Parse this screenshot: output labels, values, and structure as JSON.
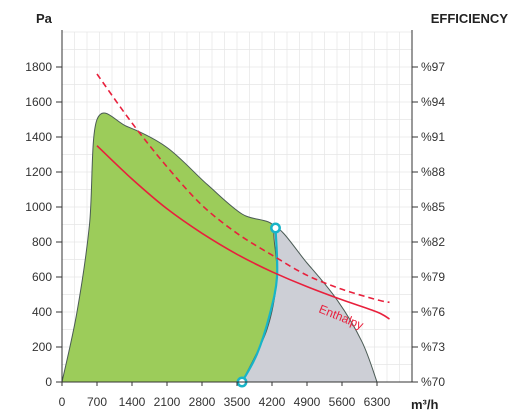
{
  "chart_data": {
    "type": "line",
    "left_axis_label": "Pa",
    "right_axis_label": "EFFICIENCY",
    "x_axis_label": "m³/h",
    "x_ticks": [
      0,
      700,
      1400,
      2100,
      2800,
      3500,
      4200,
      4900,
      5600,
      6300
    ],
    "x_tick_labels": [
      "0",
      "700",
      "1400",
      "2100",
      "2800",
      "3500",
      "4200",
      "4900",
      "5600",
      "6300"
    ],
    "xlim": [
      0,
      7000
    ],
    "y_ticks": [
      0,
      200,
      400,
      600,
      800,
      1000,
      1200,
      1400,
      1600,
      1800
    ],
    "y_tick_labels": [
      "0",
      "200",
      "400",
      "600",
      "800",
      "1000",
      "1200",
      "1400",
      "1600",
      "1800"
    ],
    "ylim": [
      0,
      2000
    ],
    "right_tick_labels": [
      "%70",
      "%73",
      "%76",
      "%79",
      "%82",
      "%85",
      "%88",
      "%91",
      "%94",
      "%97"
    ],
    "grid": true,
    "colors": {
      "green_region": "#9ccc5a",
      "grey_region": "#cdcfd6",
      "envelope_stroke": "#4b5b55",
      "boundary": "#18b4c8",
      "curve": "#e8203c"
    },
    "regions": [
      {
        "name": "green",
        "points": [
          [
            0,
            0
          ],
          [
            300,
            400
          ],
          [
            550,
            900
          ],
          [
            700,
            1500
          ],
          [
            1300,
            1460
          ],
          [
            2100,
            1340
          ],
          [
            2900,
            1130
          ],
          [
            3600,
            960
          ],
          [
            4270,
            880
          ],
          [
            4300,
            600
          ],
          [
            4100,
            300
          ],
          [
            3600,
            0
          ]
        ]
      },
      {
        "name": "grey",
        "points": [
          [
            3600,
            0
          ],
          [
            4100,
            300
          ],
          [
            4300,
            600
          ],
          [
            4270,
            880
          ],
          [
            4900,
            680
          ],
          [
            5500,
            470
          ],
          [
            6000,
            230
          ],
          [
            6300,
            0
          ]
        ]
      }
    ],
    "boundary_points": [
      [
        3600,
        0
      ],
      [
        3900,
        160
      ],
      [
        4150,
        380
      ],
      [
        4300,
        600
      ],
      [
        4270,
        880
      ]
    ],
    "series": [
      {
        "name": "Enthalpy",
        "style": "solid",
        "points": [
          [
            700,
            1350
          ],
          [
            1400,
            1160
          ],
          [
            2100,
            990
          ],
          [
            2800,
            850
          ],
          [
            3500,
            730
          ],
          [
            4200,
            630
          ],
          [
            4900,
            545
          ],
          [
            5600,
            470
          ],
          [
            6300,
            400
          ],
          [
            6550,
            360
          ]
        ]
      },
      {
        "style": "dashed",
        "points": [
          [
            700,
            1760
          ],
          [
            1400,
            1480
          ],
          [
            2100,
            1230
          ],
          [
            2800,
            1010
          ],
          [
            3500,
            850
          ],
          [
            4200,
            725
          ],
          [
            4900,
            610
          ],
          [
            5600,
            530
          ],
          [
            6300,
            470
          ],
          [
            6550,
            455
          ]
        ]
      }
    ],
    "markers": [
      [
        4270,
        880
      ],
      [
        3600,
        0
      ]
    ],
    "annotation": "Enthalpy"
  }
}
